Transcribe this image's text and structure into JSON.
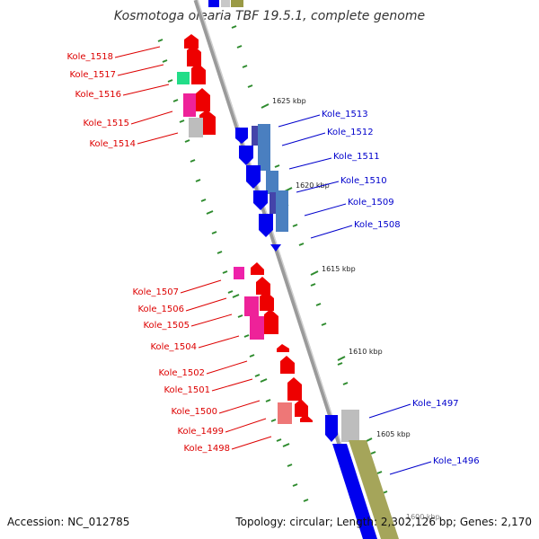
{
  "title": "Kosmotoga olearia TBF 19.5.1, complete genome",
  "footer": {
    "accession": "Accession: NC_012785",
    "summary": "Topology: circular; Length: 2,302,126 bp; Genes: 2,170"
  },
  "colors": {
    "backbone": "#9a9a9a",
    "reverse_label": "#dd0000",
    "forward_label": "#0000cc",
    "dotted_ruler": "#2e8b2e"
  },
  "ticks": [
    {
      "label": "1625 kbp"
    },
    {
      "label": "1620 kbp"
    },
    {
      "label": "1615 kbp"
    },
    {
      "label": "1610 kbp"
    },
    {
      "label": "1605 kbp"
    },
    {
      "label": "1600 kbp"
    }
  ],
  "reverse_genes": [
    "Kole_1518",
    "Kole_1517",
    "Kole_1516",
    "Kole_1515",
    "Kole_1514",
    "Kole_1507",
    "Kole_1506",
    "Kole_1505",
    "Kole_1504",
    "Kole_1502",
    "Kole_1501",
    "Kole_1500",
    "Kole_1499",
    "Kole_1498"
  ],
  "forward_genes": [
    "Kole_1513",
    "Kole_1512",
    "Kole_1511",
    "Kole_1510",
    "Kole_1509",
    "Kole_1508",
    "Kole_1497",
    "Kole_1496"
  ]
}
